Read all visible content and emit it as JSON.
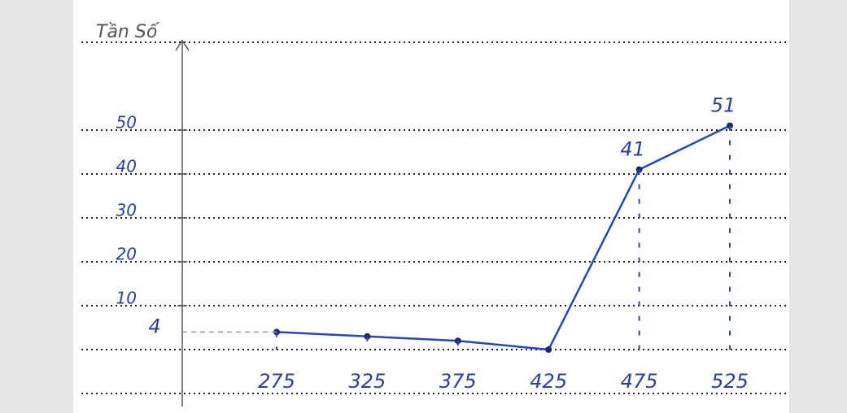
{
  "chart_data": {
    "type": "line",
    "y_label": "Tần Số",
    "categories": [
      "275",
      "325",
      "375",
      "425",
      "475",
      "525"
    ],
    "series": [
      {
        "color": "#2747b5",
        "values": [
          4,
          3,
          2,
          0,
          41,
          51
        ]
      }
    ],
    "labeled_points": [
      0,
      4,
      5
    ],
    "ylim": [
      0,
      70
    ],
    "yticks": [
      10,
      20,
      30,
      40,
      50
    ],
    "grid": true
  }
}
